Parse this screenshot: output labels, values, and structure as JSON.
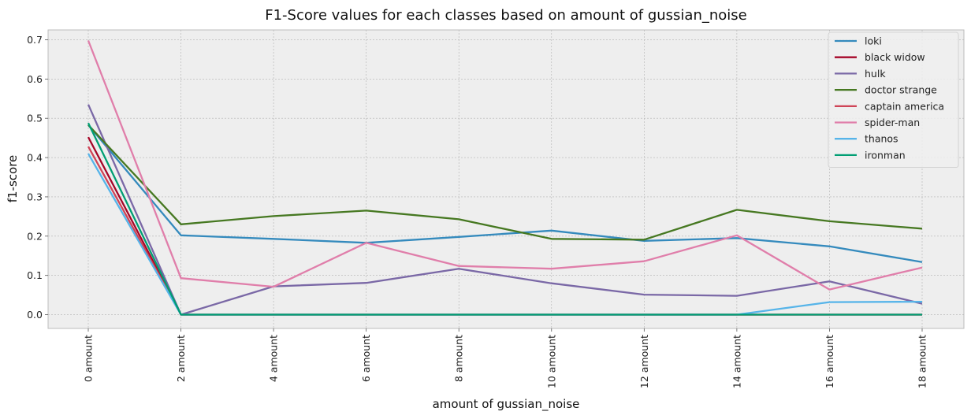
{
  "chart_data": {
    "type": "line",
    "title": "F1-Score values for each classes based on amount of gussian_noise",
    "xlabel": "amount of gussian_noise",
    "ylabel": "f1-score",
    "categories": [
      "0 amount",
      "2 amount",
      "4 amount",
      "6 amount",
      "8 amount",
      "10 amount",
      "12 amount",
      "14 amount",
      "16 amount",
      "18 amount"
    ],
    "ylim": [
      -0.035,
      0.725
    ],
    "yticks": [
      0.0,
      0.1,
      0.2,
      0.3,
      0.4,
      0.5,
      0.6,
      0.7
    ],
    "grid": true,
    "legend": "top-right",
    "series": [
      {
        "name": "loki",
        "color": "#348abd",
        "values": [
          0.483,
          0.202,
          0.193,
          0.183,
          0.198,
          0.214,
          0.188,
          0.195,
          0.174,
          0.134
        ]
      },
      {
        "name": "black widow",
        "color": "#a60628",
        "values": [
          0.452,
          0.0,
          0.0,
          0.0,
          0.0,
          0.0,
          0.0,
          0.0,
          0.0,
          0.0
        ]
      },
      {
        "name": "hulk",
        "color": "#7a68a6",
        "values": [
          0.535,
          0.0,
          0.072,
          0.081,
          0.117,
          0.08,
          0.051,
          0.048,
          0.085,
          0.028
        ]
      },
      {
        "name": "doctor strange",
        "color": "#467821",
        "values": [
          0.483,
          0.23,
          0.251,
          0.265,
          0.243,
          0.193,
          0.191,
          0.267,
          0.238,
          0.219
        ]
      },
      {
        "name": "captain america",
        "color": "#cf4457",
        "values": [
          0.428,
          0.0,
          0.0,
          0.0,
          0.0,
          0.0,
          0.0,
          0.0,
          0.0,
          0.0
        ]
      },
      {
        "name": "spider-man",
        "color": "#e07eaa",
        "values": [
          0.698,
          0.093,
          0.071,
          0.183,
          0.124,
          0.117,
          0.136,
          0.202,
          0.064,
          0.12
        ]
      },
      {
        "name": "thanos",
        "color": "#56b4e9",
        "values": [
          0.41,
          0.0,
          0.0,
          0.0,
          0.0,
          0.0,
          0.0,
          0.0,
          0.032,
          0.033
        ]
      },
      {
        "name": "ironman",
        "color": "#009e73",
        "values": [
          0.488,
          0.0,
          0.0,
          0.0,
          0.0,
          0.0,
          0.0,
          0.0,
          0.0,
          0.0
        ]
      }
    ]
  }
}
